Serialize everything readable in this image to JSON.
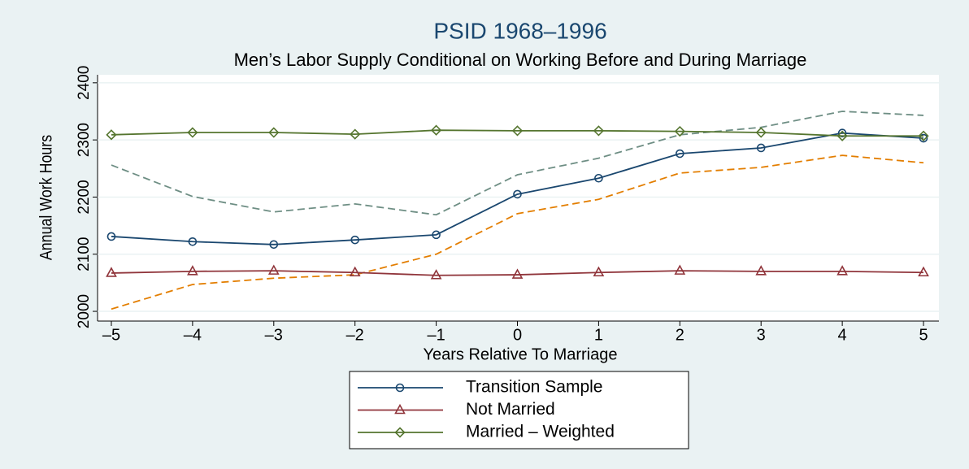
{
  "chart_data": {
    "type": "line",
    "title": "PSID 1968–1996",
    "subtitle": "Men’s Labor Supply Conditional on Working Before and During Marriage",
    "x_label": "Years Relative To Marriage",
    "y_label": "Annual Work Hours",
    "x": [
      -5,
      -4,
      -3,
      -2,
      -1,
      0,
      1,
      2,
      3,
      4,
      5
    ],
    "xlim": [
      -5.17,
      5.19
    ],
    "xticks": [
      {
        "value": -5,
        "label": "–5"
      },
      {
        "value": -4,
        "label": "–4"
      },
      {
        "value": -3,
        "label": "–3"
      },
      {
        "value": -2,
        "label": "–2"
      },
      {
        "value": -1,
        "label": "–1"
      },
      0,
      1,
      2,
      3,
      4,
      5
    ],
    "ylim": [
      1983,
      2414
    ],
    "yticks": [
      2000,
      2100,
      2200,
      2300,
      2400
    ],
    "grid": true,
    "legend": "bottom",
    "series": [
      {
        "name": "Transition Sample",
        "color": "#1a476f",
        "marker": "circle",
        "dash": false,
        "values": [
          2131,
          2122,
          2117,
          2125,
          2134,
          2205,
          2233,
          2276,
          2286,
          2312,
          2303
        ]
      },
      {
        "name": "Not Married",
        "color": "#90353b",
        "marker": "triangle",
        "dash": false,
        "values": [
          2067,
          2070,
          2071,
          2068,
          2063,
          2064,
          2068,
          2071,
          2070,
          2070,
          2068
        ]
      },
      {
        "name": "Married – Weighted",
        "color": "#55752f",
        "marker": "diamond",
        "dash": false,
        "values": [
          2309,
          2313,
          2313,
          2310,
          2317,
          2316,
          2316,
          2315,
          2313,
          2307,
          2307
        ]
      },
      {
        "color": "#6e8e84",
        "dash": true,
        "values": [
          2256,
          2201,
          2174,
          2188,
          2169,
          2239,
          2268,
          2309,
          2322,
          2350,
          2343
        ]
      },
      {
        "color": "#e37e00",
        "dash": true,
        "values": [
          2004,
          2047,
          2058,
          2064,
          2100,
          2171,
          2196,
          2242,
          2252,
          2273,
          2260
        ]
      }
    ]
  }
}
